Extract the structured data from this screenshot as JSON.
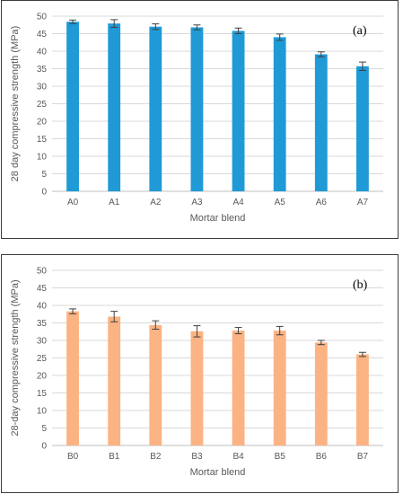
{
  "chart_data": [
    {
      "type": "bar",
      "panel_label": "(a)",
      "categories": [
        "A0",
        "A1",
        "A2",
        "A3",
        "A4",
        "A5",
        "A6",
        "A7"
      ],
      "values": [
        48.4,
        47.9,
        47.0,
        46.8,
        45.8,
        44.0,
        39.1,
        35.7
      ],
      "errors": [
        0.5,
        1.1,
        0.8,
        0.7,
        0.8,
        0.9,
        0.7,
        1.2
      ],
      "xlabel": "Mortar blend",
      "ylabel": "28 day compressive strength (MPa)",
      "ylim": [
        0,
        50
      ],
      "yticks": [
        0,
        5,
        10,
        15,
        20,
        25,
        30,
        35,
        40,
        45,
        50
      ],
      "bar_color": "#1f9ad6",
      "grid": true
    },
    {
      "type": "bar",
      "panel_label": "(b)",
      "categories": [
        "B0",
        "B1",
        "B2",
        "B3",
        "B4",
        "B5",
        "B6",
        "B7"
      ],
      "values": [
        38.3,
        36.8,
        34.4,
        32.6,
        32.8,
        32.8,
        29.4,
        26.0
      ],
      "errors": [
        0.7,
        1.5,
        1.2,
        1.6,
        0.9,
        1.2,
        0.6,
        0.6
      ],
      "xlabel": "Mortar blend",
      "ylabel": "28-day compressive strength (MPa)",
      "ylim": [
        0,
        50
      ],
      "yticks": [
        0,
        5,
        10,
        15,
        20,
        25,
        30,
        35,
        40,
        45,
        50
      ],
      "bar_color": "#fbb383",
      "grid": true
    }
  ]
}
